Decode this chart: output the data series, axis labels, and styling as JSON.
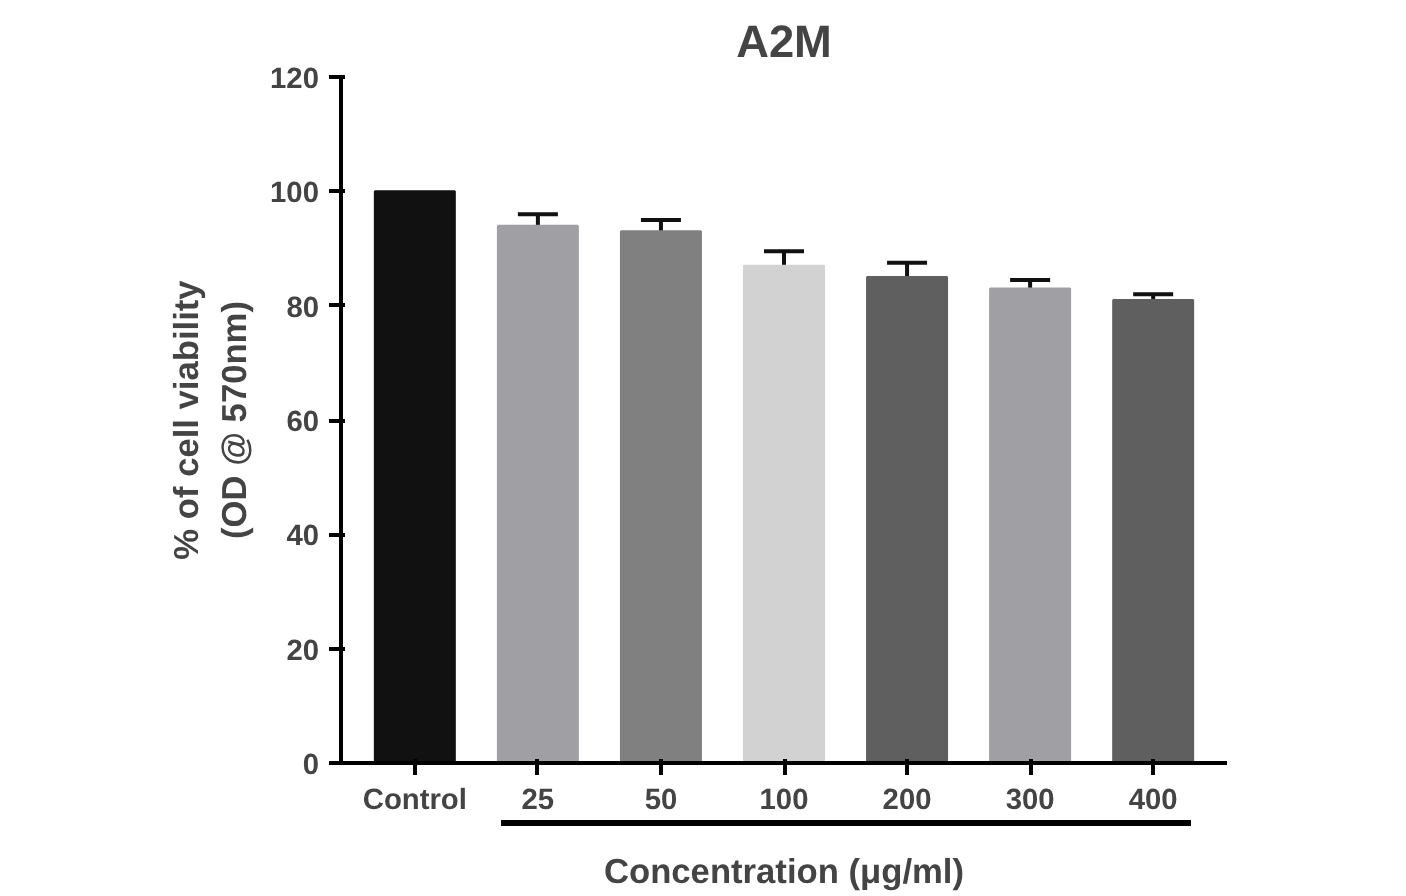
{
  "chart_data": {
    "type": "bar",
    "title": "A2M",
    "xlabel": "Concentration (μg/ml)",
    "ylabel": "% of cell viability\n(OD @ 570nm)",
    "categories": [
      "Control",
      "25",
      "50",
      "100",
      "200",
      "300",
      "400"
    ],
    "values": [
      100,
      94,
      93,
      87,
      85,
      83,
      81
    ],
    "colors": [
      "#111111",
      "#a0a0a4",
      "#808080",
      "#d2d2d2",
      "#5f5f5f",
      "#a0a0a4",
      "#5f5f5f"
    ],
    "errors": [
      null,
      2,
      2,
      2.5,
      2.5,
      1.5,
      1
    ],
    "ylim": [
      0,
      120
    ],
    "yticks": [
      0,
      20,
      40,
      60,
      80,
      100,
      120
    ],
    "grid": false
  }
}
